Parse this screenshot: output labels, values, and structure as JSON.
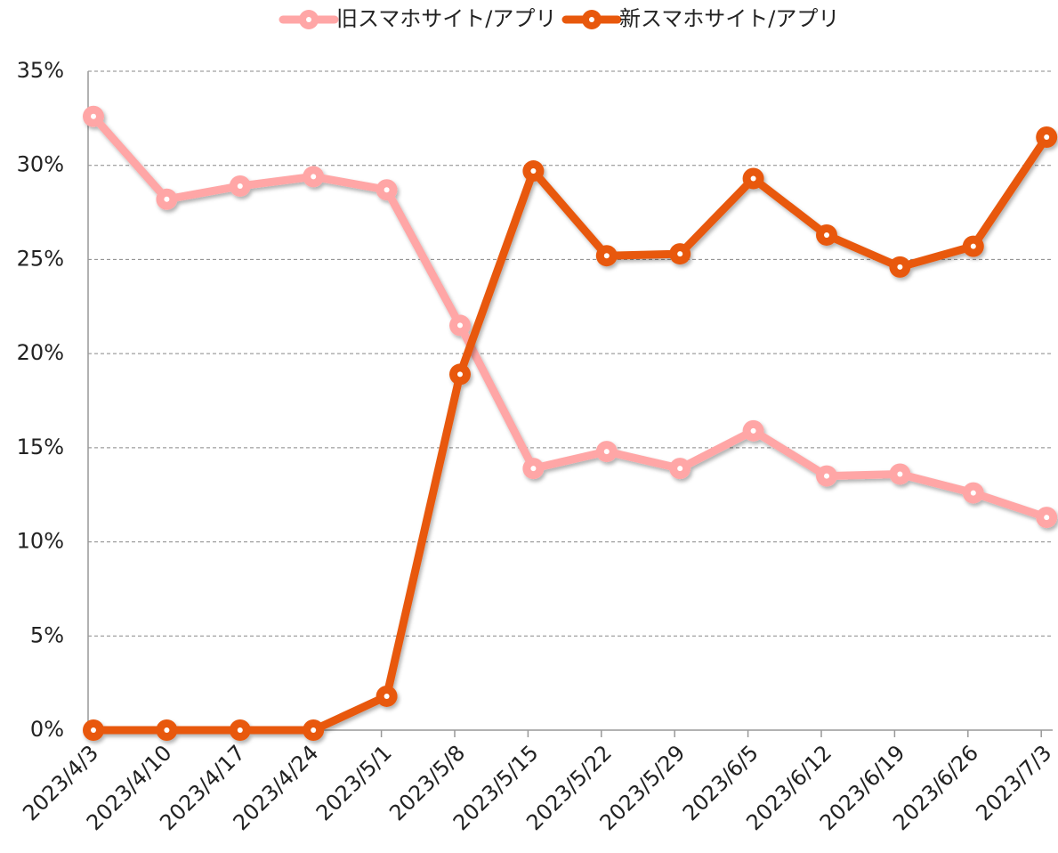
{
  "chart_data": {
    "type": "line",
    "categories": [
      "2023/4/3",
      "2023/4/10",
      "2023/4/17",
      "2023/4/24",
      "2023/5/1",
      "2023/5/8",
      "2023/5/15",
      "2023/5/22",
      "2023/5/29",
      "2023/6/5",
      "2023/6/12",
      "2023/6/19",
      "2023/6/26",
      "2023/7/3"
    ],
    "series": [
      {
        "name": "旧スマホサイト/アプリ",
        "color": "#ffa6a6",
        "values": [
          32.6,
          28.2,
          28.9,
          29.4,
          28.7,
          21.5,
          13.9,
          14.8,
          13.9,
          15.9,
          13.5,
          13.6,
          12.6,
          11.3
        ]
      },
      {
        "name": "新スマホサイト/アプリ",
        "color": "#e8580c",
        "values": [
          0,
          0,
          0,
          0,
          1.8,
          18.9,
          29.7,
          25.2,
          25.3,
          29.3,
          26.3,
          24.6,
          25.7,
          31.5
        ]
      }
    ],
    "ylim": [
      0,
      35
    ],
    "yticks": [
      {
        "value": 0,
        "label": "0%"
      },
      {
        "value": 5,
        "label": "5%"
      },
      {
        "value": 10,
        "label": "10%"
      },
      {
        "value": 15,
        "label": "15%"
      },
      {
        "value": 20,
        "label": "20%"
      },
      {
        "value": 25,
        "label": "25%"
      },
      {
        "value": 30,
        "label": "30%"
      },
      {
        "value": 35,
        "label": "35%"
      }
    ],
    "grid": true,
    "legend": "top"
  }
}
